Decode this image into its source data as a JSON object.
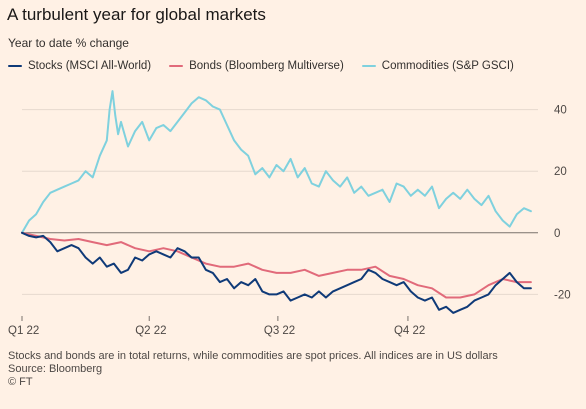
{
  "title": "A turbulent year for global markets",
  "subtitle": "Year to date % change",
  "footnote": "Stocks and bonds are in total returns, while commodities are spot prices. All indices are in US dollars",
  "source": "Source: Bloomberg",
  "credit": "© FT",
  "colors": {
    "background": "#fff1e5",
    "stocks": "#0f3a78",
    "bonds": "#e16a7a",
    "commodities": "#7fd1de",
    "grid": "#e6d9ce",
    "zero": "#7a736d"
  },
  "chart_data": {
    "type": "line",
    "title": "A turbulent year for global markets",
    "ylabel": "Year to date % change",
    "ylim": [
      -27,
      47
    ],
    "yticks": [
      40,
      20,
      0,
      -20
    ],
    "yaxis_position": "right",
    "xlim": [
      0,
      365
    ],
    "xticks": [
      {
        "x": 0,
        "label": "Q1 22"
      },
      {
        "x": 90,
        "label": "Q2 22"
      },
      {
        "x": 181,
        "label": "Q3 22"
      },
      {
        "x": 273,
        "label": "Q4 22"
      }
    ],
    "grid": true,
    "legend_position": "top-left",
    "series": [
      {
        "name": "Stocks (MSCI All-World)",
        "color": "#0f3a78",
        "x": [
          0,
          5,
          10,
          15,
          20,
          25,
          30,
          35,
          40,
          45,
          50,
          55,
          60,
          65,
          70,
          75,
          80,
          85,
          90,
          95,
          100,
          105,
          110,
          115,
          120,
          125,
          130,
          135,
          140,
          145,
          150,
          155,
          160,
          165,
          170,
          175,
          180,
          185,
          190,
          195,
          200,
          205,
          210,
          215,
          220,
          225,
          230,
          235,
          240,
          245,
          250,
          255,
          260,
          265,
          270,
          275,
          280,
          285,
          290,
          295,
          300,
          305,
          310,
          315,
          320,
          325,
          330,
          335,
          340,
          345,
          350,
          355,
          360
        ],
        "y": [
          0,
          -1,
          -1.5,
          -1,
          -3,
          -6,
          -5,
          -4,
          -5,
          -8,
          -10,
          -8,
          -11,
          -10,
          -13,
          -12,
          -8,
          -9,
          -7,
          -6,
          -7,
          -8,
          -5,
          -6,
          -8,
          -8,
          -12,
          -13,
          -16,
          -15,
          -18,
          -16,
          -17,
          -15,
          -19,
          -20,
          -20,
          -19,
          -22,
          -21,
          -20,
          -21,
          -19,
          -21,
          -19,
          -18,
          -17,
          -16,
          -15,
          -12,
          -13,
          -15,
          -16,
          -17,
          -16,
          -19,
          -21,
          -22,
          -21,
          -25,
          -24,
          -26,
          -25,
          -24,
          -22,
          -21,
          -20,
          -17,
          -15,
          -13,
          -16,
          -18,
          -18
        ]
      },
      {
        "name": "Bonds (Bloomberg Multiverse)",
        "color": "#e16a7a",
        "x": [
          0,
          10,
          20,
          30,
          40,
          50,
          60,
          70,
          80,
          90,
          100,
          110,
          120,
          130,
          140,
          150,
          160,
          170,
          180,
          190,
          200,
          210,
          220,
          230,
          240,
          250,
          260,
          270,
          280,
          290,
          300,
          310,
          320,
          330,
          340,
          350,
          360
        ],
        "y": [
          0,
          -1,
          -2,
          -2.5,
          -2,
          -3,
          -4,
          -3,
          -5,
          -6,
          -5,
          -6,
          -8,
          -10,
          -11,
          -11,
          -10,
          -12,
          -13,
          -13,
          -12,
          -14,
          -13,
          -12,
          -12,
          -11,
          -14,
          -15,
          -17,
          -18,
          -21,
          -21,
          -20,
          -17,
          -15,
          -16,
          -16
        ]
      },
      {
        "name": "Commodities (S&P GSCI)",
        "color": "#7fd1de",
        "x": [
          0,
          5,
          10,
          15,
          20,
          25,
          30,
          35,
          40,
          45,
          50,
          55,
          60,
          62,
          64,
          66,
          68,
          70,
          75,
          80,
          85,
          90,
          95,
          100,
          105,
          110,
          115,
          120,
          125,
          130,
          135,
          140,
          145,
          150,
          155,
          160,
          165,
          170,
          175,
          180,
          185,
          190,
          195,
          200,
          205,
          210,
          215,
          220,
          225,
          230,
          235,
          240,
          245,
          250,
          255,
          260,
          265,
          270,
          275,
          280,
          285,
          290,
          295,
          300,
          305,
          310,
          315,
          320,
          325,
          330,
          335,
          340,
          345,
          350,
          355,
          360
        ],
        "y": [
          0,
          4,
          6,
          10,
          13,
          14,
          15,
          16,
          17,
          20,
          18,
          25,
          30,
          40,
          46,
          38,
          32,
          36,
          28,
          33,
          36,
          30,
          34,
          35,
          33,
          36,
          39,
          42,
          44,
          43,
          41,
          40,
          35,
          30,
          27,
          25,
          19,
          21,
          18,
          22,
          20,
          24,
          18,
          21,
          16,
          15,
          20,
          17,
          15,
          18,
          13,
          15,
          12,
          13,
          14,
          10,
          16,
          15,
          12,
          14,
          12,
          15,
          8,
          11,
          13,
          11,
          14,
          11,
          9,
          12,
          7,
          4,
          2,
          6,
          8,
          7
        ]
      }
    ]
  }
}
